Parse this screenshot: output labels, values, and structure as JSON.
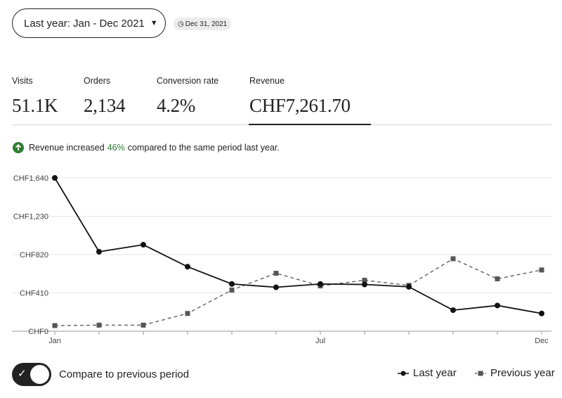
{
  "header": {
    "range_label": "Last year: Jan - Dec 2021",
    "date_badge": "Dec 31, 2021"
  },
  "metrics": {
    "visits": {
      "label": "Visits",
      "value": "51.1K"
    },
    "orders": {
      "label": "Orders",
      "value": "2,134"
    },
    "conversion": {
      "label": "Conversion rate",
      "value": "4.2%"
    },
    "revenue": {
      "label": "Revenue",
      "value": "CHF7,261.70"
    }
  },
  "notice": {
    "prefix": "Revenue increased",
    "percent": "46%",
    "suffix": "compared to the same period last year.",
    "color": "#2e7d32"
  },
  "toggle": {
    "label": "Compare to previous period",
    "checked": true
  },
  "legend": {
    "last": "Last year",
    "previous": "Previous year"
  },
  "chart_data": {
    "type": "line",
    "categories": [
      "Jan",
      "Feb",
      "Mar",
      "Apr",
      "May",
      "Jun",
      "Jul",
      "Aug",
      "Sep",
      "Oct",
      "Nov",
      "Dec"
    ],
    "x_tick_labels": [
      {
        "index": 0,
        "label": "Jan"
      },
      {
        "index": 6,
        "label": "Jul"
      },
      {
        "index": 11,
        "label": "Dec"
      }
    ],
    "y_ticks": [
      0,
      410,
      820,
      1230,
      1640
    ],
    "y_tick_labels": [
      "CHF0",
      "CHF410",
      "CHF820",
      "CHF1,230",
      "CHF1,640"
    ],
    "ylim": [
      0,
      1640
    ],
    "grid": true,
    "legend_position": "bottom-right",
    "series": [
      {
        "name": "Last year",
        "style": "solid",
        "marker": "circle",
        "color": "#111111",
        "values": [
          1640,
          850,
          925,
          690,
          505,
          470,
          505,
          500,
          475,
          225,
          275,
          190
        ]
      },
      {
        "name": "Previous year",
        "style": "dashed",
        "marker": "square",
        "color": "#555555",
        "values": [
          60,
          65,
          65,
          190,
          440,
          620,
          485,
          545,
          490,
          775,
          560,
          655
        ]
      }
    ]
  }
}
